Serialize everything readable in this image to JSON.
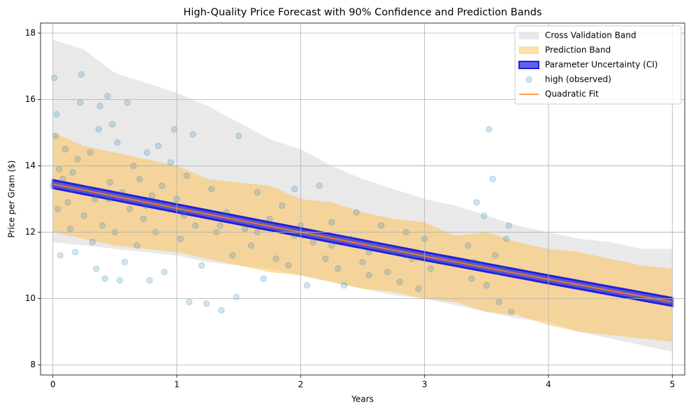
{
  "chart_data": {
    "type": "line",
    "title": "High-Quality Price Forecast with 90% Confidence and Prediction Bands",
    "xlabel": "Years",
    "ylabel": "Price per Gram ($)",
    "xlim": [
      -0.1,
      5.1
    ],
    "ylim": [
      7.7,
      18.3
    ],
    "xticks": [
      0,
      1,
      2,
      3,
      4,
      5
    ],
    "yticks": [
      8,
      10,
      12,
      14,
      16,
      18
    ],
    "grid": true,
    "legend": "upper right",
    "series": [
      {
        "name": "Cross Validation Band",
        "type": "band",
        "color": "#d3d3d3",
        "x": [
          0,
          0.25,
          0.5,
          0.75,
          1,
          1.25,
          1.5,
          1.75,
          2,
          2.25,
          2.5,
          2.75,
          3,
          3.25,
          3.5,
          3.75,
          4,
          4.25,
          4.5,
          4.75,
          5
        ],
        "upper": [
          17.8,
          17.5,
          16.8,
          16.5,
          16.2,
          15.8,
          15.3,
          14.8,
          14.5,
          14.0,
          13.6,
          13.3,
          13.0,
          12.8,
          12.5,
          12.2,
          12.0,
          11.8,
          11.7,
          11.5,
          11.5
        ],
        "lower": [
          11.7,
          11.6,
          11.5,
          11.4,
          11.3,
          11.1,
          11.0,
          10.9,
          10.7,
          10.5,
          10.3,
          10.1,
          10.0,
          9.8,
          9.6,
          9.4,
          9.3,
          9.0,
          8.8,
          8.6,
          8.4
        ]
      },
      {
        "name": "Prediction Band",
        "type": "band",
        "color": "#ffc04d",
        "x": [
          0,
          0.25,
          0.5,
          0.75,
          1,
          1.25,
          1.5,
          1.75,
          2,
          2.25,
          2.5,
          2.75,
          3,
          3.25,
          3.5,
          3.75,
          4,
          4.25,
          4.5,
          4.75,
          5
        ],
        "upper": [
          15.0,
          14.6,
          14.4,
          14.2,
          14.0,
          13.6,
          13.5,
          13.4,
          13.0,
          12.9,
          12.6,
          12.4,
          12.3,
          11.9,
          12.0,
          11.7,
          11.5,
          11.4,
          11.2,
          11.0,
          10.9
        ],
        "lower": [
          12.0,
          11.8,
          11.6,
          11.5,
          11.4,
          11.2,
          11.0,
          10.8,
          10.7,
          10.5,
          10.3,
          10.2,
          10.0,
          9.9,
          9.6,
          9.5,
          9.2,
          9.0,
          8.9,
          8.8,
          8.7
        ]
      },
      {
        "name": "Parameter Uncertainty (CI)",
        "type": "band",
        "color": "#2020e0",
        "x": [
          0,
          1,
          2,
          3,
          4,
          5
        ],
        "upper": [
          13.57,
          12.84,
          12.12,
          11.4,
          10.7,
          10.02
        ],
        "lower": [
          13.33,
          12.6,
          11.88,
          11.16,
          10.46,
          9.78
        ]
      },
      {
        "name": "high (observed)",
        "type": "scatter",
        "color": "#1f77b4",
        "x": [
          0.0,
          0.01,
          0.02,
          0.03,
          0.04,
          0.05,
          0.06,
          0.08,
          0.1,
          0.12,
          0.14,
          0.16,
          0.18,
          0.2,
          0.22,
          0.23,
          0.25,
          0.27,
          0.3,
          0.32,
          0.34,
          0.35,
          0.37,
          0.38,
          0.4,
          0.42,
          0.44,
          0.46,
          0.48,
          0.5,
          0.52,
          0.54,
          0.56,
          0.58,
          0.6,
          0.62,
          0.65,
          0.68,
          0.7,
          0.73,
          0.76,
          0.78,
          0.8,
          0.83,
          0.85,
          0.88,
          0.9,
          0.93,
          0.95,
          0.98,
          1.0,
          1.03,
          1.06,
          1.08,
          1.1,
          1.13,
          1.15,
          1.2,
          1.24,
          1.28,
          1.32,
          1.36,
          1.4,
          1.45,
          1.48,
          1.5,
          1.55,
          1.6,
          1.65,
          1.7,
          1.75,
          1.8,
          1.85,
          1.9,
          1.95,
          2.0,
          2.05,
          2.1,
          2.15,
          2.2,
          2.25,
          2.3,
          2.35,
          2.4,
          2.45,
          2.5,
          2.55,
          2.6,
          2.65,
          2.7,
          2.75,
          2.8,
          2.85,
          2.9,
          2.95,
          3.0,
          3.05,
          3.35,
          3.38,
          3.42,
          3.45,
          3.48,
          3.5,
          3.52,
          3.55,
          3.57,
          3.6,
          3.63,
          3.66,
          3.68,
          3.7,
          0.15,
          0.45,
          0.75,
          1.05,
          1.35,
          1.65,
          1.95,
          2.25,
          2.55,
          2.85,
          3.4,
          3.6
        ],
        "values": [
          13.4,
          16.65,
          14.9,
          15.55,
          12.7,
          13.9,
          11.3,
          13.6,
          14.5,
          12.9,
          12.1,
          13.8,
          11.4,
          14.2,
          15.9,
          16.75,
          12.5,
          13.3,
          14.4,
          11.7,
          13.0,
          10.9,
          15.1,
          15.8,
          12.2,
          10.6,
          16.1,
          13.5,
          15.25,
          12.0,
          14.7,
          10.55,
          13.2,
          11.1,
          15.9,
          12.7,
          14.0,
          11.6,
          13.6,
          12.4,
          14.4,
          10.55,
          13.1,
          12.0,
          14.6,
          13.4,
          10.8,
          12.8,
          14.1,
          15.1,
          13.0,
          11.8,
          12.5,
          13.7,
          9.9,
          14.95,
          12.2,
          11.0,
          9.85,
          13.3,
          12.0,
          9.65,
          12.6,
          11.3,
          10.05,
          14.9,
          12.1,
          11.6,
          13.2,
          10.6,
          12.4,
          11.2,
          12.8,
          11.0,
          13.3,
          12.2,
          10.4,
          11.7,
          13.4,
          11.2,
          12.3,
          10.9,
          10.4,
          11.8,
          12.6,
          11.1,
          10.7,
          11.6,
          12.2,
          10.8,
          11.4,
          10.5,
          12.0,
          11.2,
          10.3,
          11.8,
          10.9,
          11.6,
          10.6,
          12.9,
          11.0,
          12.5,
          10.4,
          15.1,
          13.6,
          11.3,
          9.9,
          10.9,
          11.8,
          12.2,
          9.6,
          13.3,
          13.0,
          12.8,
          12.6,
          12.2,
          12.0,
          11.9,
          11.6,
          11.4,
          11.3,
          11.1,
          10.8
        ]
      },
      {
        "name": "Quadratic Fit",
        "type": "line",
        "color": "#ff7f0e",
        "x": [
          0,
          1,
          2,
          3,
          4,
          5
        ],
        "values": [
          13.45,
          12.72,
          12.0,
          11.28,
          10.58,
          9.9
        ]
      }
    ]
  }
}
